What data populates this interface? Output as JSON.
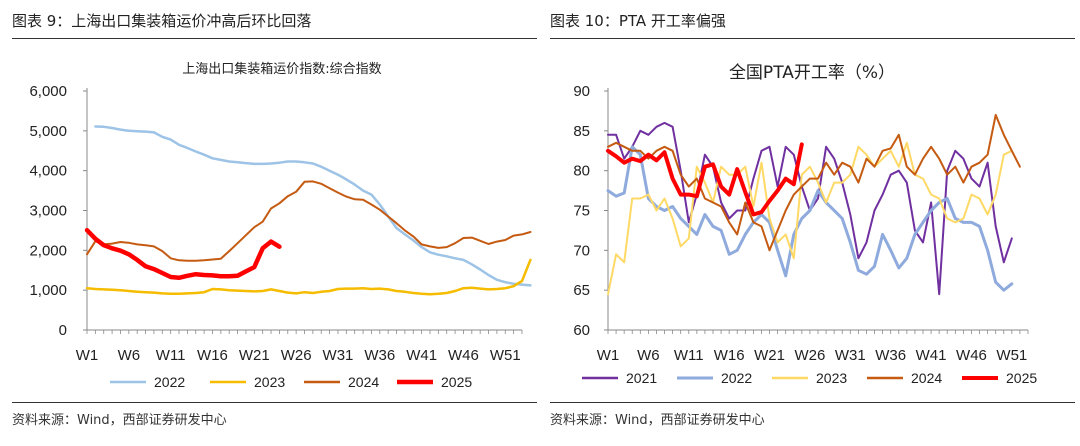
{
  "left": {
    "caption": "图表 9：上海出口集装箱运价冲高后环比回落",
    "source": "资料来源：Wind，西部证券研发中心"
  },
  "right": {
    "caption": "图表 10：PTA 开工率偏强",
    "source": "资料来源：Wind，西部证券研发中心"
  },
  "chart_data": [
    {
      "type": "line",
      "title": "上海出口集装箱运价指数:综合指数",
      "xlabel": "",
      "ylabel": "",
      "ylim": [
        0,
        6000
      ],
      "yticks": [
        0,
        1000,
        2000,
        3000,
        4000,
        5000,
        6000
      ],
      "ytick_labels": [
        "0",
        "1,000",
        "2,000",
        "3,000",
        "4,000",
        "5,000",
        "6,000"
      ],
      "xlim": [
        1,
        53
      ],
      "xticks": [
        1,
        6,
        11,
        16,
        21,
        26,
        31,
        36,
        41,
        46,
        51
      ],
      "xtick_labels": [
        "W1",
        "W6",
        "W11",
        "W16",
        "W21",
        "W26",
        "W31",
        "W36",
        "W41",
        "W46",
        "W51"
      ],
      "legend_position": "bottom",
      "series": [
        {
          "name": "2022",
          "color": "#9dc3e6",
          "width": 2.5,
          "x_start": 2,
          "values": [
            5110,
            5100,
            5070,
            5030,
            5000,
            4990,
            4980,
            4960,
            4850,
            4780,
            4650,
            4570,
            4480,
            4400,
            4310,
            4270,
            4230,
            4210,
            4190,
            4170,
            4170,
            4180,
            4200,
            4230,
            4230,
            4210,
            4180,
            4100,
            4000,
            3900,
            3780,
            3650,
            3500,
            3400,
            3150,
            2850,
            2560,
            2400,
            2250,
            2080,
            1950,
            1890,
            1850,
            1800,
            1760,
            1650,
            1520,
            1380,
            1260,
            1200,
            1160,
            1140,
            1120
          ]
        },
        {
          "name": "2023",
          "color": "#f5bc00",
          "width": 2.5,
          "x_start": 1,
          "values": [
            1050,
            1030,
            1020,
            1010,
            1000,
            980,
            960,
            950,
            940,
            920,
            910,
            910,
            920,
            930,
            950,
            1030,
            1020,
            1000,
            990,
            980,
            970,
            980,
            1020,
            980,
            940,
            920,
            950,
            930,
            960,
            980,
            1030,
            1040,
            1040,
            1050,
            1030,
            1040,
            1020,
            980,
            960,
            930,
            910,
            900,
            910,
            930,
            980,
            1050,
            1060,
            1040,
            1020,
            1030,
            1050,
            1100,
            1230,
            1760
          ]
        },
        {
          "name": "2024",
          "color": "#c55a11",
          "width": 2,
          "x_start": 1,
          "values": [
            1900,
            2230,
            2150,
            2170,
            2210,
            2190,
            2150,
            2130,
            2100,
            1980,
            1800,
            1750,
            1740,
            1740,
            1750,
            1770,
            1790,
            1980,
            2180,
            2380,
            2580,
            2720,
            3050,
            3180,
            3360,
            3470,
            3720,
            3730,
            3670,
            3560,
            3450,
            3350,
            3280,
            3270,
            3150,
            3020,
            2850,
            2680,
            2500,
            2350,
            2150,
            2100,
            2060,
            2080,
            2180,
            2310,
            2320,
            2240,
            2160,
            2220,
            2260,
            2370,
            2400,
            2460
          ]
        },
        {
          "name": "2025",
          "color": "#ff0000",
          "width": 4.5,
          "x_start": 1,
          "values": [
            2505,
            2290,
            2130,
            2050,
            1990,
            1900,
            1760,
            1600,
            1530,
            1430,
            1330,
            1310,
            1360,
            1400,
            1380,
            1370,
            1350,
            1350,
            1360,
            1470,
            1580,
            2050,
            2220,
            2090
          ]
        }
      ]
    },
    {
      "type": "line",
      "title": "全国PTA开工率（%）",
      "xlabel": "",
      "ylabel": "",
      "ylim": [
        60,
        90
      ],
      "yticks": [
        60,
        65,
        70,
        75,
        80,
        85,
        90
      ],
      "ytick_labels": [
        "60",
        "65",
        "70",
        "75",
        "80",
        "85",
        "90"
      ],
      "xlim": [
        1,
        53
      ],
      "xticks": [
        1,
        6,
        11,
        16,
        21,
        26,
        31,
        36,
        41,
        46,
        51
      ],
      "xtick_labels": [
        "W1",
        "W6",
        "W11",
        "W16",
        "W21",
        "W26",
        "W31",
        "W36",
        "W41",
        "W46",
        "W51"
      ],
      "legend_position": "bottom",
      "series": [
        {
          "name": "2021",
          "color": "#7030a0",
          "width": 2,
          "x_start": 1,
          "values": [
            84.5,
            84.5,
            81.5,
            83.0,
            85.0,
            84.5,
            85.5,
            86.0,
            85.5,
            80.0,
            73.5,
            77.0,
            82.0,
            80.5,
            76.0,
            74.0,
            75.0,
            75.0,
            79.0,
            82.5,
            83.0,
            78.0,
            83.0,
            82.0,
            78.0,
            75.0,
            76.5,
            83.0,
            81.5,
            78.5,
            74.5,
            69.0,
            71.0,
            75.0,
            77.0,
            79.5,
            80.0,
            78.5,
            72.5,
            71.0,
            76.0,
            64.5,
            80.0,
            82.5,
            81.5,
            79.0,
            78.0,
            81.0,
            73.0,
            68.5,
            71.5
          ]
        },
        {
          "name": "2022",
          "color": "#8faadc",
          "width": 3,
          "x_start": 1,
          "values": [
            77.5,
            76.8,
            77.2,
            83.0,
            82.0,
            76.5,
            75.5,
            75.0,
            75.5,
            74.0,
            73.0,
            72.0,
            74.5,
            73.0,
            72.5,
            69.5,
            70.0,
            72.0,
            73.5,
            74.5,
            73.5,
            70.0,
            66.8,
            72.0,
            74.0,
            75.0,
            77.5,
            76.0,
            75.0,
            74.0,
            71.0,
            67.5,
            67.0,
            68.0,
            72.0,
            70.0,
            67.8,
            69.0,
            72.0,
            73.5,
            75.0,
            76.0,
            76.5,
            74.0,
            73.5,
            73.5,
            73.0,
            70.0,
            66.0,
            65.0,
            65.8
          ]
        },
        {
          "name": "2023",
          "color": "#ffd966",
          "width": 2,
          "x_start": 1,
          "values": [
            64.5,
            69.5,
            68.5,
            76.5,
            76.5,
            77.0,
            75.0,
            76.5,
            74.0,
            70.5,
            71.5,
            80.5,
            78.5,
            76.0,
            80.5,
            79.5,
            79.5,
            80.5,
            75.5,
            81.0,
            74.0,
            71.0,
            72.0,
            69.0,
            79.5,
            80.5,
            78.5,
            76.0,
            78.5,
            78.5,
            79.5,
            83.0,
            82.0,
            80.5,
            81.5,
            82.5,
            80.5,
            83.5,
            79.5,
            79.0,
            77.0,
            76.5,
            74.0,
            73.5,
            74.0,
            77.0,
            76.5,
            74.5,
            77.0,
            82.0,
            82.5
          ]
        },
        {
          "name": "2024",
          "color": "#c55a11",
          "width": 2,
          "x_start": 1,
          "values": [
            83.0,
            83.5,
            83.0,
            82.5,
            82.5,
            81.5,
            82.5,
            83.0,
            82.5,
            79.5,
            78.0,
            79.0,
            76.5,
            76.0,
            75.5,
            73.5,
            72.0,
            76.0,
            73.5,
            73.0,
            70.0,
            72.5,
            75.0,
            77.0,
            78.0,
            79.0,
            79.0,
            81.0,
            79.5,
            81.0,
            80.5,
            78.5,
            81.5,
            80.5,
            82.5,
            82.8,
            84.5,
            80.5,
            79.5,
            81.5,
            83.0,
            81.5,
            79.5,
            80.5,
            78.5,
            80.5,
            81.0,
            82.0,
            87.0,
            84.5,
            82.5,
            80.5
          ]
        },
        {
          "name": "2025",
          "color": "#ff0000",
          "width": 4,
          "x_start": 1,
          "values": [
            82.5,
            81.8,
            81.0,
            81.5,
            81.2,
            82.0,
            81.3,
            82.3,
            79.0,
            77.0,
            77.0,
            76.8,
            80.5,
            80.8,
            78.0,
            77.0,
            80.2,
            77.3,
            74.5,
            74.8,
            76.2,
            77.5,
            79.0,
            78.3,
            83.3
          ]
        }
      ]
    }
  ]
}
